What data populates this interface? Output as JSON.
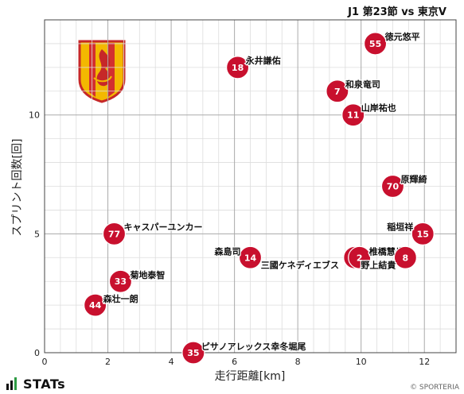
{
  "header": {
    "match_title": "J1 第23節 vs 東京V"
  },
  "footer": {
    "brand": "STATs",
    "credit": "© SPORTERIA"
  },
  "colors": {
    "marker": "#c8102e",
    "grid_major": "#aaaaaa",
    "grid_minor": "#dddddd",
    "axis": "#444444"
  },
  "chart_data": {
    "type": "scatter",
    "xlabel": "走行距離[km]",
    "ylabel": "スプリント回数[回]",
    "xlim": [
      0,
      13
    ],
    "ylim": [
      0,
      14
    ],
    "xticks": [
      0,
      2,
      4,
      6,
      8,
      10,
      12
    ],
    "yticks": [
      0,
      5,
      10
    ],
    "grid": true,
    "points": [
      {
        "number": "55",
        "name": "徳元悠平",
        "x": 10.45,
        "y": 13.0
      },
      {
        "number": "18",
        "name": "永井謙佑",
        "x": 6.1,
        "y": 12.0
      },
      {
        "number": "7",
        "name": "和泉竜司",
        "x": 9.25,
        "y": 11.0
      },
      {
        "number": "11",
        "name": "山岸祐也",
        "x": 9.75,
        "y": 10.0
      },
      {
        "number": "70",
        "name": "原輝綺",
        "x": 11.0,
        "y": 7.0
      },
      {
        "number": "77",
        "name": "キャスパーユンカー",
        "x": 2.2,
        "y": 5.0
      },
      {
        "number": "15",
        "name": "稲垣祥",
        "x": 11.95,
        "y": 5.0
      },
      {
        "number": "14",
        "name": "森島司",
        "x": 6.5,
        "y": 4.0
      },
      {
        "number": "20",
        "name": "三國ケネディエブス",
        "x": 9.8,
        "y": 4.0
      },
      {
        "number": "2",
        "name": "椎橋慧也",
        "x": 9.95,
        "y": 4.0
      },
      {
        "number": "8",
        "name": "野上結貴",
        "x": 11.4,
        "y": 4.0
      },
      {
        "number": "33",
        "name": "菊地泰智",
        "x": 2.4,
        "y": 3.0
      },
      {
        "number": "44",
        "name": "森壮一朗",
        "x": 1.6,
        "y": 2.0
      },
      {
        "number": "35",
        "name": "ピサノアレックス幸冬堀尾",
        "x": 4.7,
        "y": 0.0
      }
    ]
  }
}
